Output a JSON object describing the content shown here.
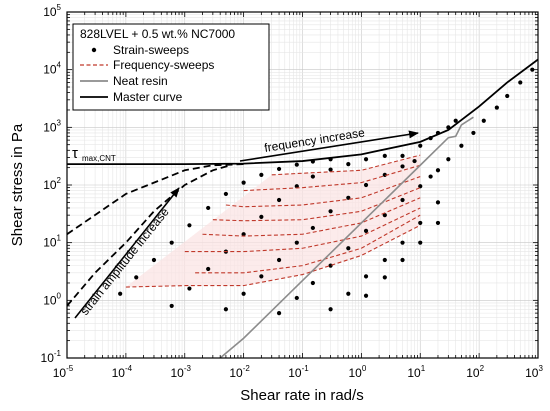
{
  "chart_data": {
    "type": "scatter",
    "xlabel": "Shear rate in rad/s",
    "ylabel": "Shear stress in Pa",
    "x_scale": "log",
    "y_scale": "log",
    "xlim": [
      1e-05,
      1000
    ],
    "ylim": [
      0.1,
      100000
    ],
    "x_ticks": [
      {
        "base": "10",
        "exp": "-5"
      },
      {
        "base": "10",
        "exp": "-4"
      },
      {
        "base": "10",
        "exp": "-3"
      },
      {
        "base": "10",
        "exp": "-2"
      },
      {
        "base": "10",
        "exp": "-1"
      },
      {
        "base": "10",
        "exp": "0"
      },
      {
        "base": "10",
        "exp": "1"
      },
      {
        "base": "10",
        "exp": "2"
      },
      {
        "base": "10",
        "exp": "3"
      }
    ],
    "y_ticks": [
      {
        "base": "10",
        "exp": "-1"
      },
      {
        "base": "10",
        "exp": "0"
      },
      {
        "base": "10",
        "exp": "1"
      },
      {
        "base": "10",
        "exp": "2"
      },
      {
        "base": "10",
        "exp": "3"
      },
      {
        "base": "10",
        "exp": "4"
      },
      {
        "base": "10",
        "exp": "5"
      }
    ],
    "grid": true,
    "legend": {
      "placement": "top-left",
      "title": "828LVEL + 0.5 wt.% NC7000",
      "entries": [
        "Strain-sweeps",
        "Frequency-sweeps",
        "Neat resin",
        "Master curve"
      ]
    },
    "colors": {
      "strain": "#000000",
      "frequency": "#c0392b",
      "neat": "#8c8c8c",
      "master": "#000000",
      "fill": "#fbe3e3"
    },
    "series": [
      {
        "name": "Strain-sweeps",
        "style": "points",
        "lines": [
          [
            [
              8e-05,
              1.3
            ],
            [
              0.00015,
              2.5
            ],
            [
              0.0003,
              5
            ],
            [
              0.0006,
              10
            ],
            [
              0.0012,
              20
            ],
            [
              0.0025,
              40
            ],
            [
              0.005,
              70
            ],
            [
              0.01,
              110
            ],
            [
              0.02,
              150
            ],
            [
              0.04,
              190
            ],
            [
              0.08,
              225
            ],
            [
              0.15,
              255
            ],
            [
              0.3,
              280
            ]
          ],
          [
            [
              0.0006,
              0.8
            ],
            [
              0.0012,
              1.6
            ],
            [
              0.0025,
              3.5
            ],
            [
              0.005,
              7
            ],
            [
              0.01,
              14
            ],
            [
              0.02,
              28
            ],
            [
              0.04,
              55
            ],
            [
              0.08,
              95
            ],
            [
              0.15,
              140
            ],
            [
              0.3,
              185
            ],
            [
              0.6,
              230
            ],
            [
              1.2,
              280
            ],
            [
              2.5,
              320
            ]
          ],
          [
            [
              0.005,
              0.7
            ],
            [
              0.01,
              1.3
            ],
            [
              0.02,
              2.6
            ],
            [
              0.04,
              5
            ],
            [
              0.08,
              10
            ],
            [
              0.15,
              18
            ],
            [
              0.3,
              35
            ],
            [
              0.6,
              60
            ],
            [
              1.2,
              100
            ],
            [
              2.5,
              150
            ],
            [
              5,
              210
            ],
            [
              8,
              260
            ]
          ],
          [
            [
              0.04,
              0.6
            ],
            [
              0.08,
              1.1
            ],
            [
              0.15,
              2
            ],
            [
              0.3,
              4
            ],
            [
              0.6,
              8
            ],
            [
              1.2,
              16
            ],
            [
              2.5,
              30
            ],
            [
              5,
              55
            ],
            [
              10,
              95
            ],
            [
              15,
              140
            ]
          ],
          [
            [
              0.3,
              0.7
            ],
            [
              0.6,
              1.3
            ],
            [
              1.2,
              2.6
            ],
            [
              2.5,
              5
            ],
            [
              5,
              10
            ],
            [
              10,
              22
            ],
            [
              20,
              50
            ]
          ],
          [
            [
              1.2,
              1.2
            ],
            [
              2.5,
              2.5
            ],
            [
              5,
              5
            ],
            [
              10,
              10
            ],
            [
              20,
              22
            ]
          ],
          [
            [
              20,
              180
            ],
            [
              30,
              280
            ],
            [
              50,
              480
            ],
            [
              80,
              800
            ],
            [
              120,
              1300
            ],
            [
              200,
              2200
            ],
            [
              300,
              3500
            ],
            [
              500,
              6000
            ],
            [
              800,
              10000
            ]
          ],
          [
            [
              5,
              320
            ],
            [
              10,
              480
            ],
            [
              15,
              650
            ],
            [
              20,
              800
            ],
            [
              30,
              1000
            ],
            [
              40,
              1300
            ]
          ]
        ]
      },
      {
        "name": "Frequency-sweeps",
        "style": "dashed",
        "lines": [
          [
            [
              0.0001,
              1.7
            ],
            [
              0.001,
              1.8
            ],
            [
              0.01,
              1.8
            ],
            [
              0.1,
              2.8
            ],
            [
              1,
              6
            ],
            [
              10,
              20
            ]
          ],
          [
            [
              0.0015,
              3
            ],
            [
              0.01,
              3
            ],
            [
              0.1,
              4
            ],
            [
              1,
              8
            ],
            [
              10,
              30
            ]
          ],
          [
            [
              0.001,
              7
            ],
            [
              0.01,
              7
            ],
            [
              0.1,
              8
            ],
            [
              1,
              13
            ],
            [
              10,
              40
            ]
          ],
          [
            [
              0.002,
              14
            ],
            [
              0.01,
              13
            ],
            [
              0.1,
              14
            ],
            [
              1,
              22
            ],
            [
              10,
              60
            ]
          ],
          [
            [
              0.003,
              25
            ],
            [
              0.01,
              24
            ],
            [
              0.1,
              25
            ],
            [
              1,
              35
            ],
            [
              10,
              90
            ]
          ],
          [
            [
              0.005,
              45
            ],
            [
              0.01,
              42
            ],
            [
              0.1,
              45
            ],
            [
              1,
              60
            ],
            [
              10,
              140
            ]
          ],
          [
            [
              0.01,
              80
            ],
            [
              0.1,
              90
            ],
            [
              1,
              110
            ],
            [
              10,
              220
            ]
          ],
          [
            [
              0.03,
              150
            ],
            [
              0.1,
              160
            ],
            [
              1,
              180
            ],
            [
              10,
              330
            ]
          ]
        ]
      },
      {
        "name": "Neat resin",
        "style": "solid",
        "lines": [
          [
            [
              0.004,
              0.1
            ],
            [
              0.01,
              0.22
            ],
            [
              0.1,
              2.2
            ],
            [
              1,
              22
            ],
            [
              10,
              220
            ],
            [
              30,
              660
            ],
            [
              40,
              700
            ],
            [
              50,
              1100
            ],
            [
              80,
              1500
            ]
          ]
        ]
      },
      {
        "name": "Master curve",
        "style": "solid",
        "lines": [
          [
            [
              1e-05,
              230
            ],
            [
              0.001,
              230
            ],
            [
              0.01,
              235
            ],
            [
              0.1,
              260
            ],
            [
              1,
              340
            ],
            [
              10,
              560
            ],
            [
              30,
              900
            ],
            [
              100,
              2300
            ],
            [
              300,
              6000
            ],
            [
              1000,
              15000
            ]
          ]
        ]
      },
      {
        "name": "",
        "style": "longdash",
        "lines": [
          [
            [
              1e-05,
              14
            ],
            [
              0.0001,
              70
            ],
            [
              0.001,
              180
            ],
            [
              0.003,
              220
            ],
            [
              0.01,
              230
            ]
          ],
          [
            [
              1e-05,
              0.8
            ],
            [
              3e-05,
              3
            ],
            [
              0.0001,
              10
            ],
            [
              0.0003,
              35
            ],
            [
              0.001,
              100
            ],
            [
              0.003,
              180
            ],
            [
              0.006,
              220
            ]
          ]
        ]
      }
    ],
    "annotations": {
      "tau_symbol": "τ",
      "tau_subscript": "max,CNT",
      "frequency_increase": "frequency increase",
      "strain_amplitude_increase": "strain amplitude increase"
    }
  }
}
